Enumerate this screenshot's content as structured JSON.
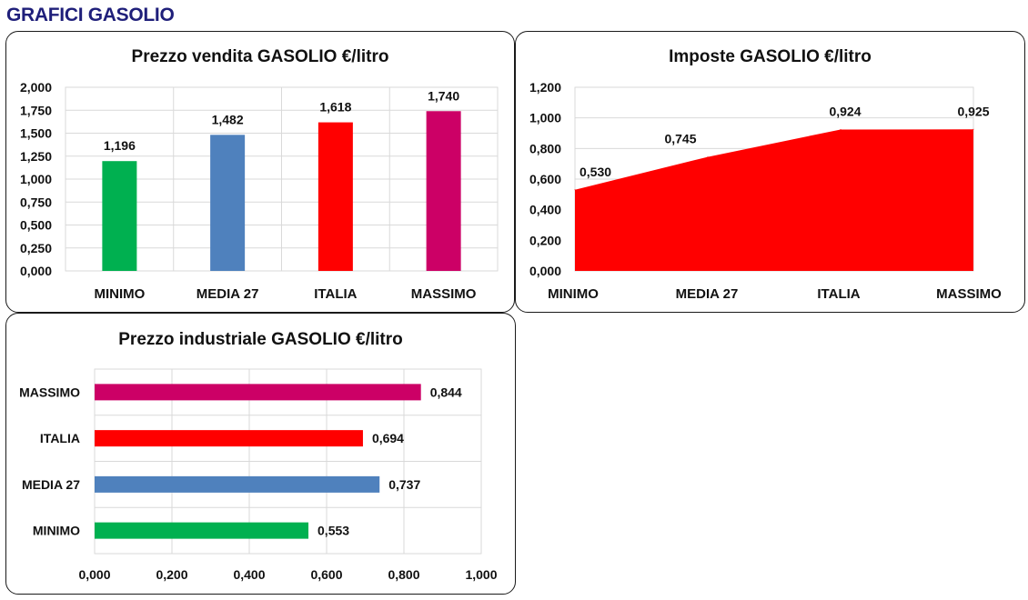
{
  "page_title": "GRAFICI GASOLIO",
  "colors": {
    "title": "#1f1f7a",
    "minimo": "#00b050",
    "media27": "#4f81bd",
    "italia": "#ff0000",
    "massimo": "#cc0066",
    "grid": "#d9d9d9"
  },
  "chart_data": [
    {
      "type": "bar",
      "title": "Prezzo vendita GASOLIO €/litro",
      "categories": [
        "MINIMO",
        "MEDIA 27",
        "ITALIA",
        "MASSIMO"
      ],
      "values": [
        1.196,
        1.482,
        1.618,
        1.74
      ],
      "value_labels": [
        "1,196",
        "1,482",
        "1,618",
        "1,740"
      ],
      "bar_colors": [
        "#00b050",
        "#4f81bd",
        "#ff0000",
        "#cc0066"
      ],
      "ylim": [
        0,
        2.0
      ],
      "y_ticks": [
        0,
        0.25,
        0.5,
        0.75,
        1.0,
        1.25,
        1.5,
        1.75,
        2.0
      ],
      "y_tick_labels": [
        "0,000",
        "0,250",
        "0,500",
        "0,750",
        "1,000",
        "1,250",
        "1,500",
        "1,750",
        "2,000"
      ],
      "grid": true
    },
    {
      "type": "area",
      "title": "Imposte GASOLIO €/litro",
      "categories": [
        "MINIMO",
        "MEDIA 27",
        "ITALIA",
        "MASSIMO"
      ],
      "values": [
        0.53,
        0.745,
        0.924,
        0.925
      ],
      "value_labels": [
        "0,530",
        "0,745",
        "0,924",
        "0,925"
      ],
      "color": "#ff0000",
      "ylim": [
        0,
        1.2
      ],
      "y_ticks": [
        0,
        0.2,
        0.4,
        0.6,
        0.8,
        1.0,
        1.2
      ],
      "y_tick_labels": [
        "0,000",
        "0,200",
        "0,400",
        "0,600",
        "0,800",
        "1,000",
        "1,200"
      ],
      "grid": true
    },
    {
      "type": "bar",
      "orientation": "horizontal",
      "title": "Prezzo industriale GASOLIO €/litro",
      "categories": [
        "MASSIMO",
        "ITALIA",
        "MEDIA 27",
        "MINIMO"
      ],
      "values": [
        0.844,
        0.694,
        0.737,
        0.553
      ],
      "value_labels": [
        "0,844",
        "0,694",
        "0,737",
        "0,553"
      ],
      "bar_colors": [
        "#cc0066",
        "#ff0000",
        "#4f81bd",
        "#00b050"
      ],
      "xlim": [
        0,
        1.0
      ],
      "x_ticks": [
        0,
        0.2,
        0.4,
        0.6,
        0.8,
        1.0
      ],
      "x_tick_labels": [
        "0,000",
        "0,200",
        "0,400",
        "0,600",
        "0,800",
        "1,000"
      ],
      "grid": true
    }
  ]
}
